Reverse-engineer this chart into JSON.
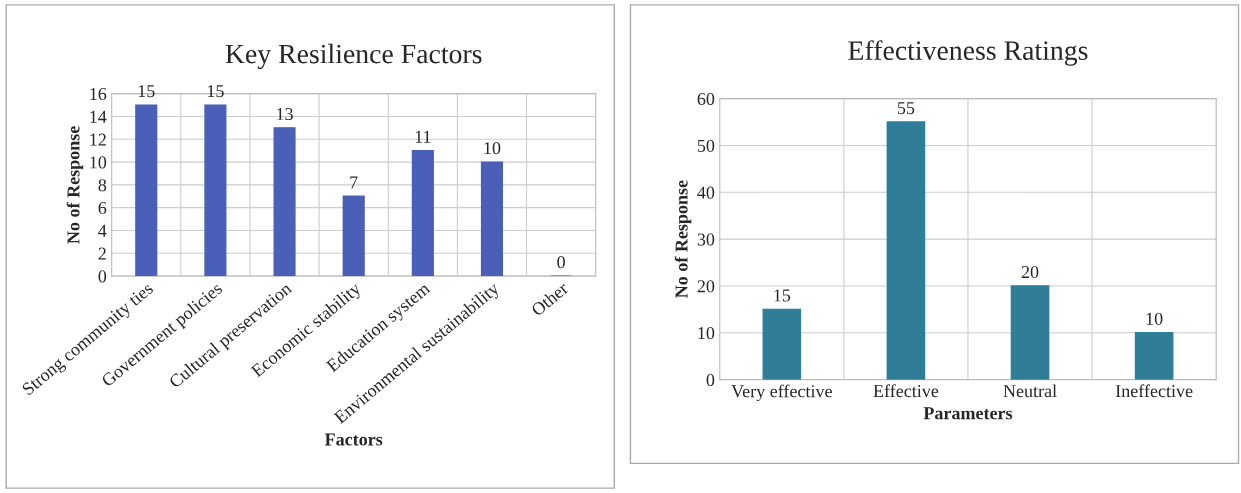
{
  "chart_data": [
    {
      "type": "bar",
      "title": "Key Resilience Factors",
      "xlabel": "Factors",
      "ylabel": "No of Response",
      "categories": [
        "Strong community ties",
        "Government policies",
        "Cultural preservation",
        "Economic stability",
        "Education system",
        "Environmental sustainability",
        "Other"
      ],
      "values": [
        15,
        15,
        13,
        7,
        11,
        10,
        0
      ],
      "color": "#4a5fb8",
      "ylim": [
        0,
        16
      ],
      "yticks": [
        0,
        2,
        4,
        6,
        8,
        10,
        12,
        14,
        16
      ],
      "grid": true,
      "data_labels": true
    },
    {
      "type": "bar",
      "title": "Effectiveness Ratings",
      "xlabel": "Parameters",
      "ylabel": "No of Response",
      "categories": [
        "Very effective",
        "Effective",
        "Neutral",
        "Ineffective"
      ],
      "values": [
        15,
        55,
        20,
        10
      ],
      "color": "#2f7d96",
      "ylim": [
        0,
        60
      ],
      "yticks": [
        0,
        10,
        20,
        30,
        40,
        50,
        60
      ],
      "grid": true,
      "data_labels": true
    }
  ]
}
